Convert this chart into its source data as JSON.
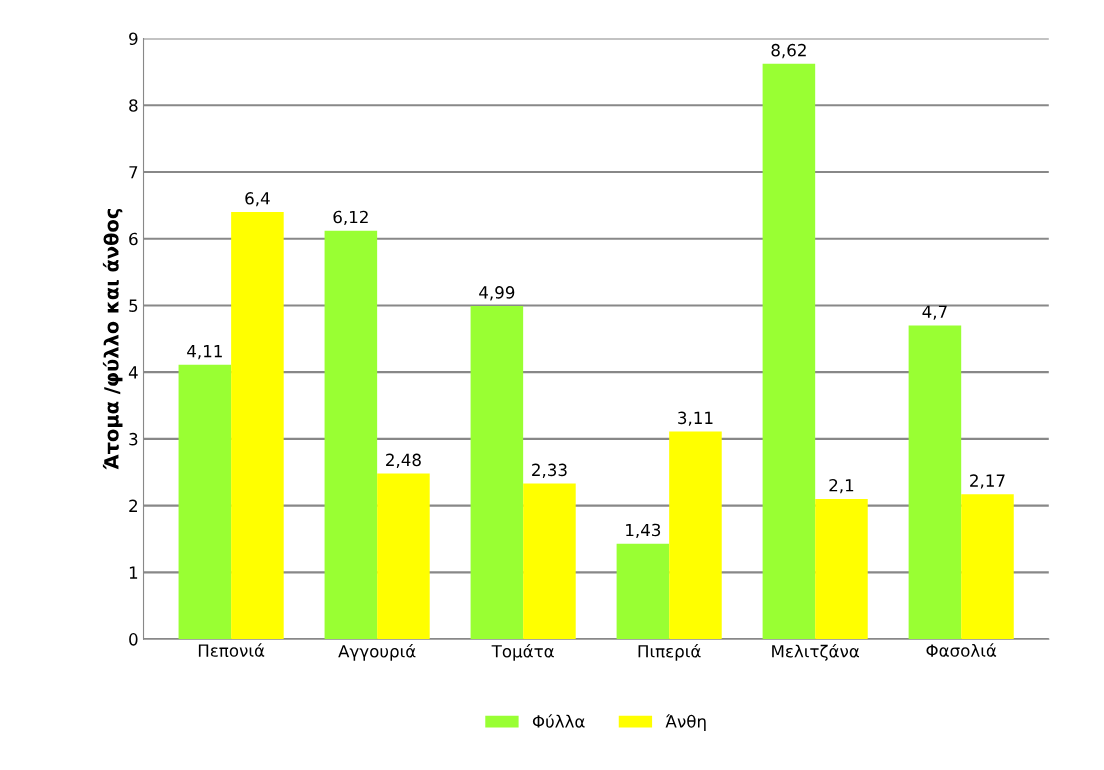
{
  "chart_data": {
    "type": "bar",
    "ylabel": "Άτομα /φύλλο και άνθος",
    "categories": [
      "Πεπονιά",
      "Αγγουριά",
      "Τομάτα",
      "Πιπεριά",
      "Μελιτζάνα",
      "Φασολιά"
    ],
    "series": [
      {
        "name": "Φύλλα",
        "color": "#99ff33",
        "values": [
          4.11,
          6.12,
          4.99,
          1.43,
          8.62,
          4.7
        ]
      },
      {
        "name": "Άνθη",
        "color": "#ffff00",
        "values": [
          6.4,
          2.48,
          2.33,
          3.11,
          2.1,
          2.17
        ]
      }
    ],
    "value_labels": [
      [
        "4,11",
        "6,12",
        "4,99",
        "1,43",
        "8,62",
        "4,7"
      ],
      [
        "6,4",
        "2,48",
        "2,33",
        "3,11",
        "2,1",
        "2,17"
      ]
    ],
    "ylim": [
      0,
      9
    ],
    "yticks": [
      0,
      1,
      2,
      3,
      4,
      5,
      6,
      7,
      8,
      9
    ],
    "grid": "y",
    "legend": "bottom"
  }
}
